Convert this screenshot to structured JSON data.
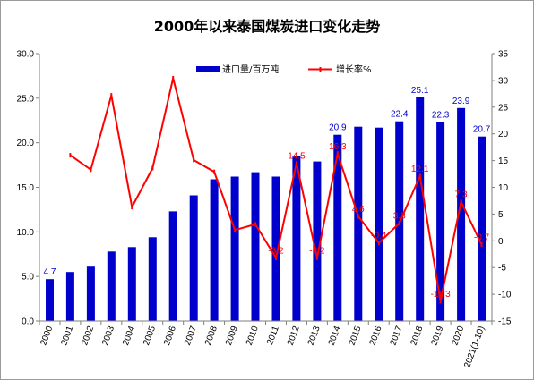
{
  "chart_data": {
    "type": "bar",
    "title": "2000年以来泰国煤炭进口变化走势",
    "categories": [
      "2000",
      "2001",
      "2002",
      "2003",
      "2004",
      "2005",
      "2006",
      "2007",
      "2008",
      "2009",
      "2010",
      "2011",
      "2012",
      "2013",
      "2014",
      "2015",
      "2016",
      "2017",
      "2018",
      "2019",
      "2020",
      "2021(1-10)"
    ],
    "series": [
      {
        "name": "进口量/百万吨",
        "type": "bar",
        "axis": "left",
        "color": "#0000cc",
        "values": [
          4.7,
          5.5,
          6.1,
          7.8,
          8.3,
          9.4,
          12.3,
          14.1,
          15.9,
          16.2,
          16.7,
          16.2,
          18.5,
          17.9,
          20.9,
          21.8,
          21.7,
          22.4,
          25.1,
          22.3,
          23.9,
          20.7
        ]
      },
      {
        "name": "增长率%",
        "type": "line",
        "axis": "right",
        "color": "#ff0000",
        "values": [
          null,
          16.0,
          13.3,
          27.2,
          6.3,
          13.6,
          30.4,
          15.1,
          12.9,
          2.0,
          3.1,
          -3.2,
          14.5,
          -3.2,
          16.3,
          4.6,
          -0.4,
          3.3,
          12.1,
          -11.3,
          7.3,
          -0.7
        ]
      }
    ],
    "bar_labels": [
      {
        "index": 0,
        "text": "4.7"
      },
      {
        "index": 14,
        "text": "20.9"
      },
      {
        "index": 17,
        "text": "22.4"
      },
      {
        "index": 18,
        "text": "25.1"
      },
      {
        "index": 19,
        "text": "22.3"
      },
      {
        "index": 20,
        "text": "23.9"
      },
      {
        "index": 21,
        "text": "20.7"
      }
    ],
    "line_labels": [
      {
        "index": 11,
        "text": "-3.2"
      },
      {
        "index": 12,
        "text": "14.5"
      },
      {
        "index": 13,
        "text": "-3.2"
      },
      {
        "index": 14,
        "text": "16.3"
      },
      {
        "index": 15,
        "text": "4.6"
      },
      {
        "index": 16,
        "text": "-0.4"
      },
      {
        "index": 17,
        "text": "3.3"
      },
      {
        "index": 18,
        "text": "12.1"
      },
      {
        "index": 19,
        "text": "-11.3"
      },
      {
        "index": 20,
        "text": "7.3"
      },
      {
        "index": 21,
        "text": "-0.7"
      }
    ],
    "y_left": {
      "min": 0,
      "max": 30,
      "step": 5,
      "decimals": 1
    },
    "y_right": {
      "min": -15,
      "max": 35,
      "step": 5,
      "decimals": 0
    },
    "grid": false,
    "legend_position": "top-center"
  }
}
